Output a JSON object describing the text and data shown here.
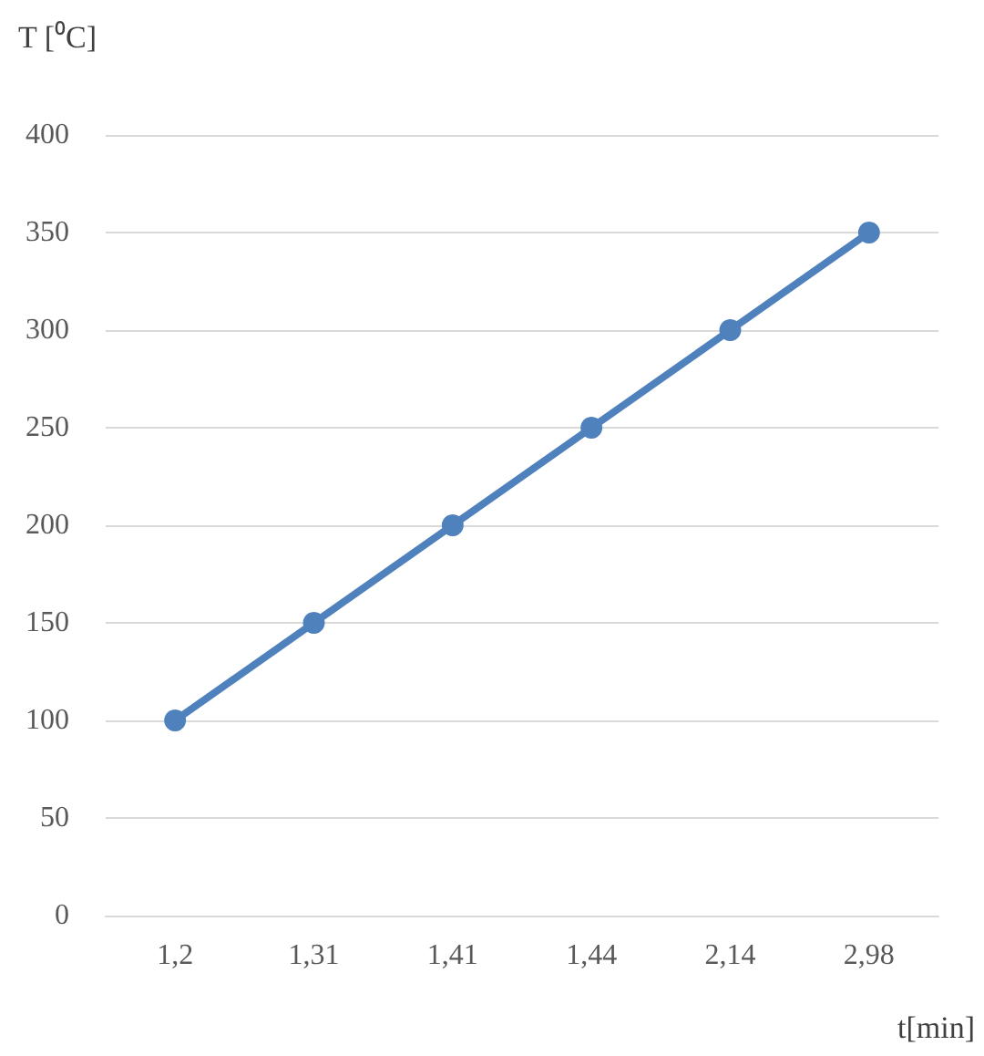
{
  "chart_data": {
    "type": "line",
    "xlabel": "t[min]",
    "ylabel": "T [⁰C]",
    "categories": [
      "1,2",
      "1,31",
      "1,41",
      "1,44",
      "2,14",
      "2,98"
    ],
    "series": [
      {
        "color": "#4f81bd",
        "values": [
          100,
          150,
          200,
          250,
          300,
          350
        ]
      }
    ],
    "ylim": [
      0,
      400
    ],
    "yticks": [
      0,
      50,
      100,
      150,
      200,
      250,
      300,
      350,
      400
    ],
    "grid": "y",
    "marker": "circle",
    "line_style": "solid"
  }
}
